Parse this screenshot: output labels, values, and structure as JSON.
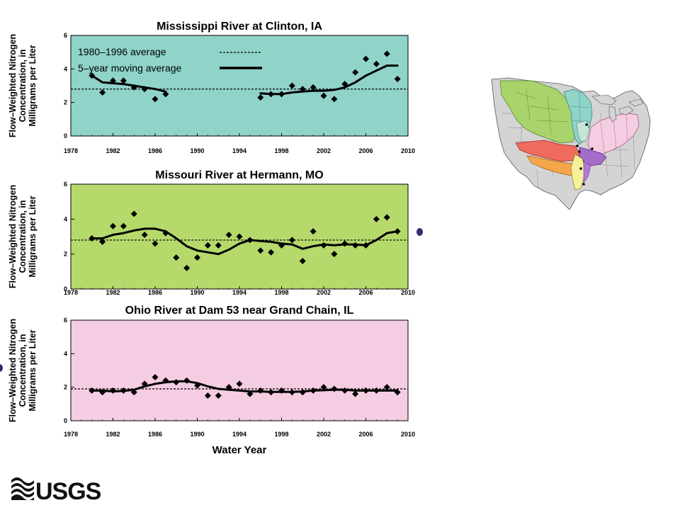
{
  "colors": {
    "panel1_bg": "#8fd3c9",
    "panel2_bg": "#b6d96b",
    "panel3_bg": "#f5cde3",
    "marker": "#000000",
    "line": "#000000"
  },
  "x_axis_title": "Water Year",
  "y_axis_label": [
    "Flow–Weighted Nitrogen",
    "Concentration, in",
    "Milligrams per Liter"
  ],
  "y_axis_label_p1": [
    "Flow–Weighted Nitrogen",
    "Concentration, in",
    "Milligrams per Liter"
  ],
  "legend": {
    "average_label": "1980–1996 average",
    "moving_label": "5–year moving average"
  },
  "logo": {
    "text": "USGS"
  },
  "chart_data": [
    {
      "type": "scatter",
      "title": "Mississippi River at Clinton, IA",
      "xlim": [
        1978,
        2010
      ],
      "ylim": [
        0,
        6
      ],
      "x_ticks": [
        1978,
        1982,
        1986,
        1990,
        1994,
        1998,
        2002,
        2006,
        2010
      ],
      "y_ticks": [
        0,
        2,
        4,
        6
      ],
      "average": 2.8,
      "series": [
        {
          "name": "annual",
          "points": [
            [
              1980,
              3.6
            ],
            [
              1981,
              2.6
            ],
            [
              1982,
              3.3
            ],
            [
              1983,
              3.3
            ],
            [
              1984,
              2.9
            ],
            [
              1985,
              2.8
            ],
            [
              1986,
              2.2
            ],
            [
              1987,
              2.5
            ],
            [
              1996,
              2.3
            ],
            [
              1997,
              2.5
            ],
            [
              1998,
              2.5
            ],
            [
              1999,
              3.0
            ],
            [
              2000,
              2.8
            ],
            [
              2001,
              2.9
            ],
            [
              2002,
              2.4
            ],
            [
              2003,
              2.2
            ],
            [
              2004,
              3.1
            ],
            [
              2005,
              3.8
            ],
            [
              2006,
              4.6
            ],
            [
              2007,
              4.3
            ],
            [
              2008,
              4.9
            ],
            [
              2009,
              3.4
            ]
          ]
        },
        {
          "name": "5–year moving average",
          "segments": [
            [
              [
                1980,
                3.6
              ],
              [
                1981,
                3.2
              ],
              [
                1982,
                3.15
              ],
              [
                1983,
                3.1
              ],
              [
                1984,
                3.0
              ],
              [
                1985,
                2.9
              ],
              [
                1986,
                2.8
              ],
              [
                1987,
                2.65
              ]
            ],
            [
              [
                1996,
                2.55
              ],
              [
                1997,
                2.5
              ],
              [
                1998,
                2.5
              ],
              [
                1999,
                2.6
              ],
              [
                2000,
                2.65
              ],
              [
                2001,
                2.7
              ],
              [
                2002,
                2.7
              ],
              [
                2003,
                2.75
              ],
              [
                2004,
                2.9
              ],
              [
                2005,
                3.2
              ],
              [
                2006,
                3.6
              ],
              [
                2007,
                3.9
              ],
              [
                2008,
                4.2
              ],
              [
                2009,
                4.2
              ]
            ]
          ]
        }
      ]
    },
    {
      "type": "scatter",
      "title": "Missouri River at Hermann, MO",
      "xlim": [
        1978,
        2010
      ],
      "ylim": [
        0,
        6
      ],
      "x_ticks": [
        1978,
        1982,
        1986,
        1990,
        1994,
        1998,
        2002,
        2006,
        2010
      ],
      "y_ticks": [
        0,
        2,
        4,
        6
      ],
      "average": 2.8,
      "series": [
        {
          "name": "annual",
          "points": [
            [
              1980,
              2.9
            ],
            [
              1981,
              2.7
            ],
            [
              1982,
              3.6
            ],
            [
              1983,
              3.6
            ],
            [
              1984,
              4.3
            ],
            [
              1985,
              3.1
            ],
            [
              1986,
              2.6
            ],
            [
              1987,
              3.2
            ],
            [
              1988,
              1.8
            ],
            [
              1989,
              1.2
            ],
            [
              1990,
              1.8
            ],
            [
              1991,
              2.5
            ],
            [
              1992,
              2.5
            ],
            [
              1993,
              3.1
            ],
            [
              1994,
              3.0
            ],
            [
              1995,
              2.8
            ],
            [
              1996,
              2.2
            ],
            [
              1997,
              2.1
            ],
            [
              1998,
              2.5
            ],
            [
              1999,
              2.8
            ],
            [
              2000,
              1.6
            ],
            [
              2001,
              3.3
            ],
            [
              2002,
              2.5
            ],
            [
              2003,
              2.0
            ],
            [
              2004,
              2.6
            ],
            [
              2005,
              2.5
            ],
            [
              2006,
              2.5
            ],
            [
              2007,
              4.0
            ],
            [
              2008,
              4.1
            ],
            [
              2009,
              3.3
            ]
          ]
        },
        {
          "name": "5–year moving average",
          "segments": [
            [
              [
                1980,
                2.9
              ],
              [
                1981,
                2.9
              ],
              [
                1982,
                3.1
              ],
              [
                1983,
                3.2
              ],
              [
                1984,
                3.35
              ],
              [
                1985,
                3.45
              ],
              [
                1986,
                3.45
              ],
              [
                1987,
                3.3
              ],
              [
                1988,
                2.9
              ],
              [
                1989,
                2.45
              ],
              [
                1990,
                2.2
              ],
              [
                1991,
                2.1
              ],
              [
                1992,
                2.0
              ],
              [
                1993,
                2.25
              ],
              [
                1994,
                2.6
              ],
              [
                1995,
                2.8
              ],
              [
                1996,
                2.75
              ],
              [
                1997,
                2.7
              ],
              [
                1998,
                2.6
              ],
              [
                1999,
                2.55
              ],
              [
                2000,
                2.3
              ],
              [
                2001,
                2.45
              ],
              [
                2002,
                2.55
              ],
              [
                2003,
                2.5
              ],
              [
                2004,
                2.55
              ],
              [
                2005,
                2.55
              ],
              [
                2006,
                2.5
              ],
              [
                2007,
                2.8
              ],
              [
                2008,
                3.2
              ],
              [
                2009,
                3.3
              ]
            ]
          ]
        }
      ]
    },
    {
      "type": "scatter",
      "title": "Ohio River at Dam 53 near Grand Chain, IL",
      "xlim": [
        1978,
        2010
      ],
      "ylim": [
        0,
        6
      ],
      "x_ticks": [
        1978,
        1982,
        1986,
        1990,
        1994,
        1998,
        2002,
        2006,
        2010
      ],
      "y_ticks": [
        0,
        2,
        4,
        6
      ],
      "xlabel": "Water Year",
      "average": 1.9,
      "series": [
        {
          "name": "annual",
          "points": [
            [
              1980,
              1.8
            ],
            [
              1981,
              1.7
            ],
            [
              1982,
              1.8
            ],
            [
              1983,
              1.8
            ],
            [
              1984,
              1.7
            ],
            [
              1985,
              2.2
            ],
            [
              1986,
              2.6
            ],
            [
              1987,
              2.4
            ],
            [
              1988,
              2.3
            ],
            [
              1989,
              2.4
            ],
            [
              1990,
              2.1
            ],
            [
              1991,
              1.5
            ],
            [
              1992,
              1.5
            ],
            [
              1993,
              2.0
            ],
            [
              1994,
              2.2
            ],
            [
              1995,
              1.6
            ],
            [
              1996,
              1.8
            ],
            [
              1997,
              1.7
            ],
            [
              1998,
              1.8
            ],
            [
              1999,
              1.7
            ],
            [
              2000,
              1.7
            ],
            [
              2001,
              1.8
            ],
            [
              2002,
              2.0
            ],
            [
              2003,
              1.9
            ],
            [
              2004,
              1.8
            ],
            [
              2005,
              1.6
            ],
            [
              2006,
              1.8
            ],
            [
              2007,
              1.8
            ],
            [
              2008,
              2.0
            ],
            [
              2009,
              1.7
            ]
          ]
        },
        {
          "name": "5–year moving average",
          "segments": [
            [
              [
                1980,
                1.8
              ],
              [
                1981,
                1.8
              ],
              [
                1982,
                1.75
              ],
              [
                1983,
                1.78
              ],
              [
                1984,
                1.85
              ],
              [
                1985,
                2.05
              ],
              [
                1986,
                2.2
              ],
              [
                1987,
                2.3
              ],
              [
                1988,
                2.35
              ],
              [
                1989,
                2.35
              ],
              [
                1990,
                2.25
              ],
              [
                1991,
                2.05
              ],
              [
                1992,
                1.9
              ],
              [
                1993,
                1.85
              ],
              [
                1994,
                1.8
              ],
              [
                1995,
                1.75
              ],
              [
                1996,
                1.75
              ],
              [
                1997,
                1.72
              ],
              [
                1998,
                1.72
              ],
              [
                1999,
                1.72
              ],
              [
                2000,
                1.75
              ],
              [
                2001,
                1.8
              ],
              [
                2002,
                1.82
              ],
              [
                2003,
                1.85
              ],
              [
                2004,
                1.85
              ],
              [
                2005,
                1.8
              ],
              [
                2006,
                1.8
              ],
              [
                2007,
                1.8
              ],
              [
                2008,
                1.8
              ],
              [
                2009,
                1.8
              ]
            ]
          ]
        }
      ]
    }
  ]
}
